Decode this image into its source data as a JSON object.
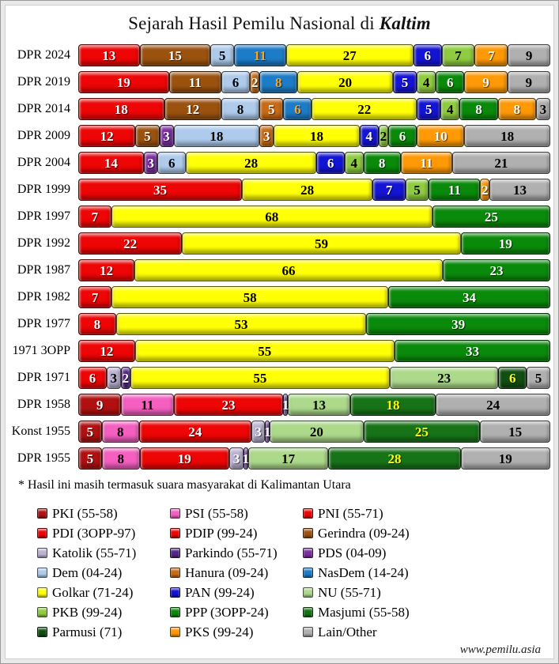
{
  "page": {
    "title_prefix": "Sejarah Hasil Pemilu Nasional di ",
    "title_region": "Kaltim",
    "footnote": "* Hasil ini masih termasuk suara masyarakat di Kalimantan Utara",
    "website": "www.pemilu.asia"
  },
  "parties": {
    "PKI": {
      "label": "PKI (55-58)",
      "color": "#B01010",
      "text_color": "#FFFFFF"
    },
    "PSI": {
      "label": "PSI (55-58)",
      "color": "#F45FC0",
      "text_color": "#000000"
    },
    "PNI": {
      "label": "PNI (55-71)",
      "color": "#EE0505",
      "text_color": "#FFFFFF"
    },
    "PDI": {
      "label": "PDI (3OPP-97)",
      "color": "#EE0505",
      "text_color": "#FFFFFF"
    },
    "PDIP": {
      "label": "PDIP (99-24)",
      "color": "#EE0505",
      "text_color": "#FFFFFF"
    },
    "Gerindra": {
      "label": "Gerindra (09-24)",
      "color": "#9C520F",
      "text_color": "#FFFFFF"
    },
    "Katolik": {
      "label": "Katolik (55-71)",
      "color": "#BCB3D4",
      "text_color": "#000000"
    },
    "Parkindo": {
      "label": "Parkindo (55-71)",
      "color": "#55268A",
      "text_color": "#FFFFFF"
    },
    "PDS": {
      "label": "PDS (04-09)",
      "color": "#7B2FA0",
      "text_color": "#FFFFFF"
    },
    "Dem": {
      "label": "Dem (04-24)",
      "color": "#AECBEC",
      "text_color": "#000000"
    },
    "Hanura": {
      "label": "Hanura (09-24)",
      "color": "#C96A15",
      "text_color": "#FFFFFF"
    },
    "NasDem": {
      "label": "NasDem (14-24)",
      "color": "#1C7CC8",
      "text_color": "#FFA41C"
    },
    "Golkar": {
      "label": "Golkar (71-24)",
      "color": "#FFFF05",
      "text_color": "#000000"
    },
    "PAN": {
      "label": "PAN (99-24)",
      "color": "#1414D6",
      "text_color": "#FFFFFF"
    },
    "NU": {
      "label": "NU (55-71)",
      "color": "#ACD98A",
      "text_color": "#000000"
    },
    "PKB": {
      "label": "PKB (99-24)",
      "color": "#8FCC3F",
      "text_color": "#000000"
    },
    "PPP": {
      "label": "PPP (3OPP-24)",
      "color": "#0A8A0A",
      "text_color": "#FFFFFF"
    },
    "Masjumi": {
      "label": "Masjumi (55-58)",
      "color": "#177317",
      "text_color": "#FFFF00"
    },
    "Parmusi": {
      "label": "Parmusi (71)",
      "color": "#114E11",
      "text_color": "#FFFF00"
    },
    "PKS": {
      "label": "PKS (99-24)",
      "color": "#FF9905",
      "text_color": "#FFFFFF"
    },
    "Lain": {
      "label": "Lain/Other",
      "color": "#B0B0B0",
      "text_color": "#000000"
    }
  },
  "chart_data": {
    "type": "bar",
    "stacked": true,
    "orientation": "horizontal",
    "title": "Sejarah Hasil Pemilu Nasional di Kaltim",
    "legend_position": "bottom",
    "categories": [
      "DPR 2024",
      "DPR 2019",
      "DPR 2014",
      "DPR 2009",
      "DPR 2004",
      "DPR 1999",
      "DPR 1997",
      "DPR 1992",
      "DPR 1987",
      "DPR 1982",
      "DPR 1977",
      "1971 3OPP",
      "DPR 1971",
      "DPR 1958",
      "Konst 1955",
      "DPR 1955"
    ],
    "rows": [
      {
        "label": "DPR 2024",
        "segments": [
          {
            "party": "PDIP",
            "value": 13
          },
          {
            "party": "Gerindra",
            "value": 15
          },
          {
            "party": "Dem",
            "value": 5
          },
          {
            "party": "NasDem",
            "value": 11
          },
          {
            "party": "Golkar",
            "value": 27
          },
          {
            "party": "PAN",
            "value": 6
          },
          {
            "party": "PKB",
            "value": 7
          },
          {
            "party": "PKS",
            "value": 7
          },
          {
            "party": "Lain",
            "value": 9
          }
        ]
      },
      {
        "label": "DPR 2019",
        "segments": [
          {
            "party": "PDIP",
            "value": 19
          },
          {
            "party": "Gerindra",
            "value": 11
          },
          {
            "party": "Dem",
            "value": 6
          },
          {
            "party": "Hanura",
            "value": 2
          },
          {
            "party": "NasDem",
            "value": 8
          },
          {
            "party": "Golkar",
            "value": 20
          },
          {
            "party": "PAN",
            "value": 5
          },
          {
            "party": "PKB",
            "value": 4
          },
          {
            "party": "PPP",
            "value": 6
          },
          {
            "party": "PKS",
            "value": 9
          },
          {
            "party": "Lain",
            "value": 9
          }
        ]
      },
      {
        "label": "DPR 2014",
        "segments": [
          {
            "party": "PDIP",
            "value": 18
          },
          {
            "party": "Gerindra",
            "value": 12
          },
          {
            "party": "Dem",
            "value": 8
          },
          {
            "party": "Hanura",
            "value": 5
          },
          {
            "party": "NasDem",
            "value": 6
          },
          {
            "party": "Golkar",
            "value": 22
          },
          {
            "party": "PAN",
            "value": 5
          },
          {
            "party": "PKB",
            "value": 4
          },
          {
            "party": "PPP",
            "value": 8
          },
          {
            "party": "PKS",
            "value": 8
          },
          {
            "party": "Lain",
            "value": 3
          }
        ]
      },
      {
        "label": "DPR 2009",
        "segments": [
          {
            "party": "PDIP",
            "value": 12
          },
          {
            "party": "Gerindra",
            "value": 5
          },
          {
            "party": "PDS",
            "value": 3
          },
          {
            "party": "Dem",
            "value": 18
          },
          {
            "party": "Hanura",
            "value": 3
          },
          {
            "party": "Golkar",
            "value": 18
          },
          {
            "party": "PAN",
            "value": 4
          },
          {
            "party": "PKB",
            "value": 2
          },
          {
            "party": "PPP",
            "value": 6
          },
          {
            "party": "PKS",
            "value": 10
          },
          {
            "party": "Lain",
            "value": 18
          }
        ]
      },
      {
        "label": "DPR 2004",
        "segments": [
          {
            "party": "PDIP",
            "value": 14
          },
          {
            "party": "PDS",
            "value": 3
          },
          {
            "party": "Dem",
            "value": 6
          },
          {
            "party": "Golkar",
            "value": 28
          },
          {
            "party": "PAN",
            "value": 6
          },
          {
            "party": "PKB",
            "value": 4
          },
          {
            "party": "PPP",
            "value": 8
          },
          {
            "party": "PKS",
            "value": 11
          },
          {
            "party": "Lain",
            "value": 21
          }
        ]
      },
      {
        "label": "DPR 1999",
        "segments": [
          {
            "party": "PDIP",
            "value": 35
          },
          {
            "party": "Golkar",
            "value": 28
          },
          {
            "party": "PAN",
            "value": 7
          },
          {
            "party": "PKB",
            "value": 5
          },
          {
            "party": "PPP",
            "value": 11
          },
          {
            "party": "PKS",
            "value": 2
          },
          {
            "party": "Lain",
            "value": 13
          }
        ]
      },
      {
        "label": "DPR 1997",
        "segments": [
          {
            "party": "PDI",
            "value": 7
          },
          {
            "party": "Golkar",
            "value": 68
          },
          {
            "party": "PPP",
            "value": 25
          }
        ]
      },
      {
        "label": "DPR 1992",
        "segments": [
          {
            "party": "PDI",
            "value": 22
          },
          {
            "party": "Golkar",
            "value": 59
          },
          {
            "party": "PPP",
            "value": 19
          }
        ]
      },
      {
        "label": "DPR 1987",
        "segments": [
          {
            "party": "PDI",
            "value": 12
          },
          {
            "party": "Golkar",
            "value": 66
          },
          {
            "party": "PPP",
            "value": 23
          }
        ]
      },
      {
        "label": "DPR 1982",
        "segments": [
          {
            "party": "PDI",
            "value": 7
          },
          {
            "party": "Golkar",
            "value": 58
          },
          {
            "party": "PPP",
            "value": 34
          }
        ]
      },
      {
        "label": "DPR 1977",
        "segments": [
          {
            "party": "PDI",
            "value": 8
          },
          {
            "party": "Golkar",
            "value": 53
          },
          {
            "party": "PPP",
            "value": 39
          }
        ]
      },
      {
        "label": "1971 3OPP",
        "segments": [
          {
            "party": "PDI",
            "value": 12
          },
          {
            "party": "Golkar",
            "value": 55
          },
          {
            "party": "PPP",
            "value": 33
          }
        ]
      },
      {
        "label": "DPR 1971",
        "segments": [
          {
            "party": "PNI",
            "value": 6
          },
          {
            "party": "Katolik",
            "value": 3
          },
          {
            "party": "Parkindo",
            "value": 2
          },
          {
            "party": "Golkar",
            "value": 55
          },
          {
            "party": "NU",
            "value": 23
          },
          {
            "party": "Parmusi",
            "value": 6
          },
          {
            "party": "Lain",
            "value": 5
          }
        ]
      },
      {
        "label": "DPR 1958",
        "segments": [
          {
            "party": "PKI",
            "value": 9
          },
          {
            "party": "PSI",
            "value": 11
          },
          {
            "party": "PNI",
            "value": 23
          },
          {
            "party": "Parkindo",
            "value": 1
          },
          {
            "party": "NU",
            "value": 13
          },
          {
            "party": "Masjumi",
            "value": 18
          },
          {
            "party": "Lain",
            "value": 24
          }
        ]
      },
      {
        "label": "Konst 1955",
        "segments": [
          {
            "party": "PKI",
            "value": 5
          },
          {
            "party": "PSI",
            "value": 8
          },
          {
            "party": "PNI",
            "value": 24
          },
          {
            "party": "Katolik",
            "value": 3,
            "text": "#FFFFFF"
          },
          {
            "party": "Parkindo",
            "value": 1
          },
          {
            "party": "NU",
            "value": 20
          },
          {
            "party": "Masjumi",
            "value": 25
          },
          {
            "party": "Lain",
            "value": 15
          }
        ]
      },
      {
        "label": "DPR 1955",
        "segments": [
          {
            "party": "PKI",
            "value": 5
          },
          {
            "party": "PSI",
            "value": 8
          },
          {
            "party": "PNI",
            "value": 19
          },
          {
            "party": "Katolik",
            "value": 3,
            "text": "#FFFFFF"
          },
          {
            "party": "Parkindo",
            "value": 1
          },
          {
            "party": "NU",
            "value": 17
          },
          {
            "party": "Masjumi",
            "value": 28
          },
          {
            "party": "Lain",
            "value": 19
          }
        ]
      }
    ]
  },
  "legend": {
    "items": [
      "PKI",
      "PSI",
      "PNI",
      "PDI",
      "PDIP",
      "Gerindra",
      "Katolik",
      "Parkindo",
      "PDS",
      "Dem",
      "Hanura",
      "NasDem",
      "Golkar",
      "PAN",
      "NU",
      "PKB",
      "PPP",
      "Masjumi",
      "Parmusi",
      "PKS",
      "Lain"
    ]
  }
}
